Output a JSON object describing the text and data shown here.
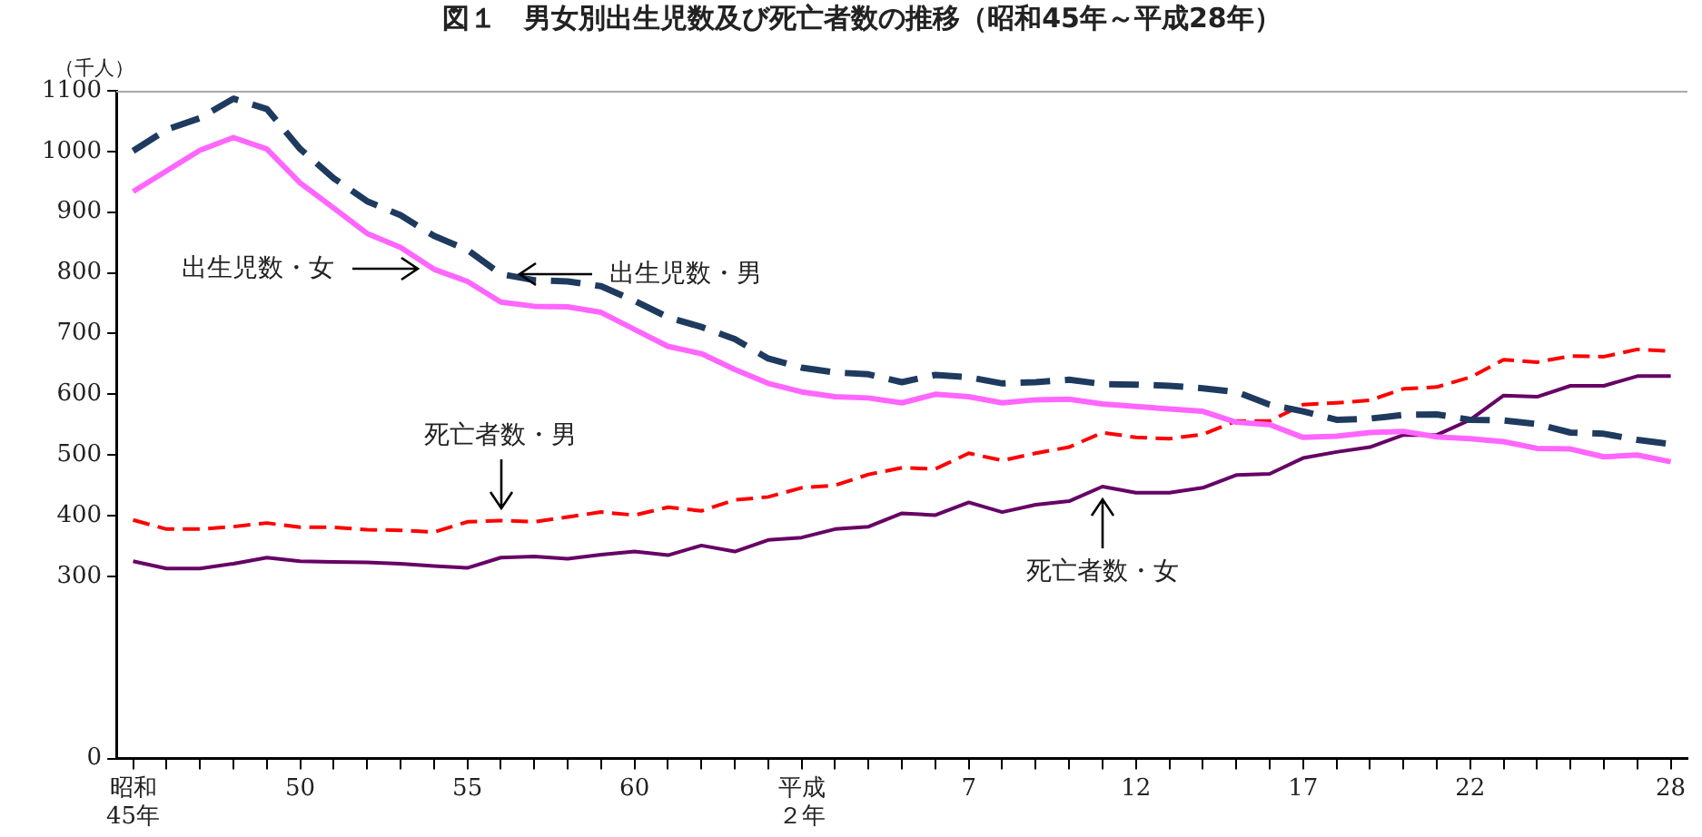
{
  "chart_data": {
    "type": "line",
    "title": "図１　男女別出生児数及び死亡者数の推移（昭和45年～平成28年）",
    "ylabel": "（千人）",
    "categories": [
      "昭和45年",
      null,
      null,
      null,
      null,
      "50",
      null,
      null,
      null,
      null,
      "55",
      null,
      null,
      null,
      null,
      "60",
      null,
      null,
      null,
      null,
      "平成２年",
      null,
      null,
      null,
      null,
      "7",
      null,
      null,
      null,
      null,
      "12",
      null,
      null,
      null,
      null,
      "17",
      null,
      null,
      null,
      null,
      "22",
      null,
      null,
      null,
      null,
      null,
      "28"
    ],
    "ylim": [
      0,
      1100
    ],
    "yticks": [
      0,
      300,
      400,
      500,
      600,
      700,
      800,
      900,
      1000,
      1100
    ],
    "grid": false,
    "legend": false,
    "marker": "none",
    "series": [
      {
        "name": "出生児数・男",
        "color": "#1f3a5f",
        "line_style": "dashed",
        "values": [
          1001,
          1036,
          1055,
          1087,
          1070,
          1004,
          956,
          918,
          895,
          861,
          838,
          798,
          788,
          786,
          778,
          754,
          727,
          711,
          691,
          659,
          644,
          636,
          633,
          620,
          632,
          628,
          618,
          620,
          624,
          617,
          616,
          614,
          610,
          604,
          583,
          572,
          558,
          560,
          566,
          567,
          558,
          557,
          551,
          537,
          535,
          525,
          518
        ]
      },
      {
        "name": "出生児数・女",
        "color": "#ff66ff",
        "line_style": "solid",
        "values": [
          934,
          968,
          1002,
          1023,
          1004,
          948,
          907,
          865,
          842,
          806,
          786,
          752,
          745,
          744,
          735,
          707,
          679,
          667,
          641,
          618,
          604,
          596,
          594,
          586,
          600,
          596,
          586,
          591,
          592,
          584,
          580,
          576,
          572,
          554,
          550,
          529,
          531,
          537,
          539,
          530,
          527,
          522,
          511,
          510,
          497,
          500,
          489
        ]
      },
      {
        "name": "死亡者数・男",
        "color": "#ff0000",
        "line_style": "dashed",
        "values": [
          393,
          378,
          378,
          382,
          388,
          381,
          381,
          377,
          376,
          373,
          390,
          392,
          390,
          398,
          406,
          401,
          414,
          408,
          426,
          431,
          446,
          450,
          468,
          479,
          477,
          503,
          491,
          503,
          513,
          537,
          529,
          527,
          534,
          556,
          556,
          583,
          586,
          590,
          609,
          612,
          628,
          657,
          653,
          663,
          662,
          674,
          671
        ]
      },
      {
        "name": "死亡者数・女",
        "color": "#660066",
        "line_style": "solid",
        "values": [
          325,
          313,
          313,
          321,
          331,
          325,
          324,
          323,
          321,
          317,
          314,
          331,
          333,
          329,
          336,
          341,
          335,
          351,
          341,
          360,
          364,
          378,
          382,
          404,
          401,
          422,
          406,
          418,
          424,
          448,
          438,
          438,
          446,
          467,
          469,
          495,
          505,
          513,
          533,
          533,
          558,
          598,
          596,
          614,
          614,
          630,
          630
        ]
      }
    ]
  }
}
